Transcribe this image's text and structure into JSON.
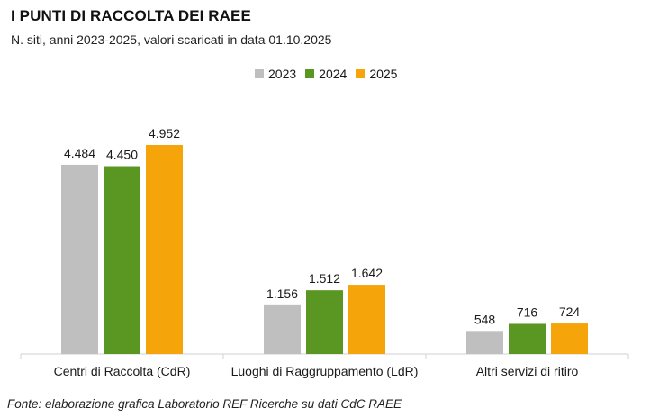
{
  "chart_data": {
    "type": "bar",
    "title": "I PUNTI DI RACCOLTA DEI RAEE",
    "subtitle": "N. siti, anni 2023-2025, valori scaricati in data 01.10.2025",
    "xlabel": "",
    "ylabel": "",
    "categories": [
      "Centri di Raccolta (CdR)",
      "Luoghi di Raggruppamento (LdR)",
      "Altri servizi di ritiro"
    ],
    "series": [
      {
        "name": "2023",
        "color": "#bfbfbf",
        "values": [
          4484,
          1156,
          548
        ],
        "labels": [
          "4.484",
          "1.156",
          "548"
        ]
      },
      {
        "name": "2024",
        "color": "#5a9622",
        "values": [
          4450,
          1512,
          716
        ],
        "labels": [
          "4.450",
          "1.512",
          "716"
        ]
      },
      {
        "name": "2025",
        "color": "#f5a40a",
        "values": [
          4952,
          1642,
          724
        ],
        "labels": [
          "4.952",
          "1.642",
          "724"
        ]
      }
    ],
    "ylim": [
      0,
      4952
    ],
    "grid": false,
    "legend_position": "top-center",
    "source": "Fonte: elaborazione grafica Laboratorio REF Ricerche su dati CdC RAEE"
  }
}
